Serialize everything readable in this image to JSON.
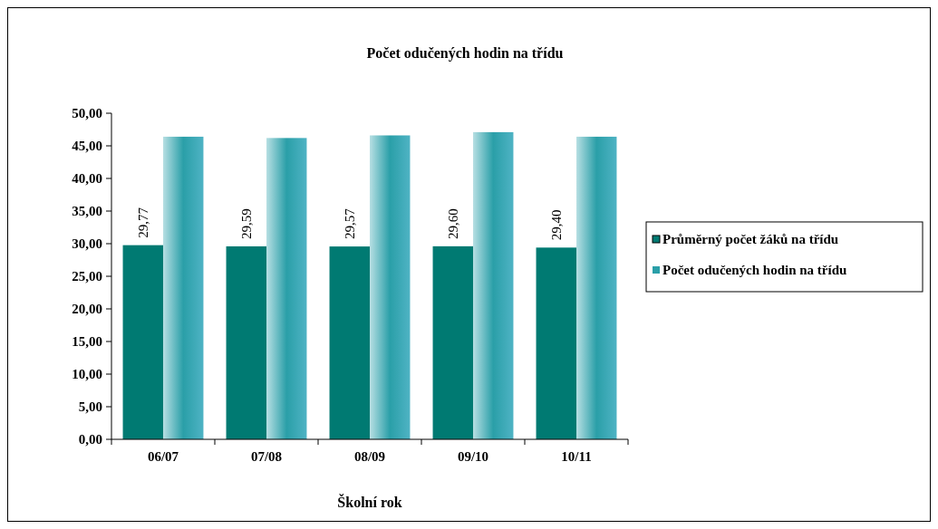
{
  "chart_data": {
    "type": "bar",
    "title": "Počet odučených hodin na třídu",
    "xlabel": "Školní rok",
    "categories": [
      "06/07",
      "07/08",
      "08/09",
      "09/10",
      "10/11"
    ],
    "series": [
      {
        "name": "Průměrný počet žáků na třídu",
        "color": "#007a72",
        "values": [
          29.77,
          29.59,
          29.57,
          29.6,
          29.4
        ],
        "value_labels": [
          "29,77",
          "29,59",
          "29,57",
          "29,60",
          "29,40"
        ]
      },
      {
        "name": "Počet odučených hodin na třídu",
        "color": "#2a9fa8",
        "values": [
          46.4,
          46.2,
          46.6,
          47.1,
          46.4
        ]
      }
    ],
    "ylim": [
      0,
      50
    ],
    "yticks": [
      {
        "value": 0,
        "label": "0,00"
      },
      {
        "value": 5,
        "label": "5,00"
      },
      {
        "value": 10,
        "label": "10,00"
      },
      {
        "value": 15,
        "label": "15,00"
      },
      {
        "value": 20,
        "label": "20,00"
      },
      {
        "value": 25,
        "label": "25,00"
      },
      {
        "value": 30,
        "label": "30,00"
      },
      {
        "value": 35,
        "label": "35,00"
      },
      {
        "value": 40,
        "label": "40,00"
      },
      {
        "value": 45,
        "label": "45,00"
      },
      {
        "value": 50,
        "label": "50,00"
      }
    ],
    "grid": false,
    "legend": "right"
  }
}
